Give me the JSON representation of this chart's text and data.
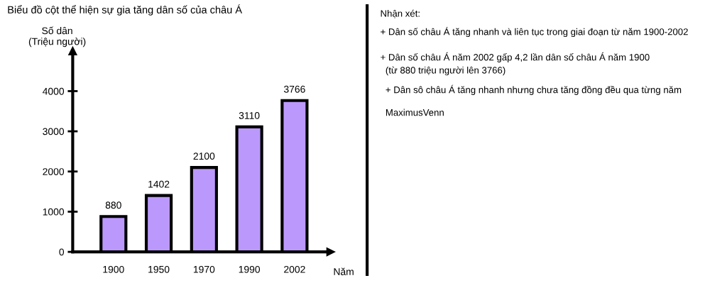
{
  "chart_data": {
    "type": "bar",
    "title": "Biểu đồ cột thể hiện sự gia tăng dân số của châu Á",
    "xlabel": "Năm",
    "ylabel": "Số dân\n(Triệu người)",
    "categories": [
      "1900",
      "1950",
      "1970",
      "1990",
      "2002"
    ],
    "values": [
      880,
      1402,
      2100,
      3110,
      3766
    ],
    "color": "#bb99fc",
    "ylim": [
      0,
      5000
    ],
    "yticks": [
      0,
      1000,
      2000,
      3000,
      4000
    ],
    "grid": false,
    "data_labels": true,
    "annotations": [
      "Nhận xét:",
      "+ Dân số châu Á tăng nhanh và liên tục trong giai đoạn từ năm 1900-2002",
      "+ Dân số châu Á năm 2002 gấp 4,2 lần dân số châu Á năm 1900\n  (từ 880 triệu người lên 3766)",
      "  + Dân sô châu Á tăng nhanh nhưng chưa tăng đồng đều qua từng năm",
      "  MaximusVenn"
    ]
  }
}
